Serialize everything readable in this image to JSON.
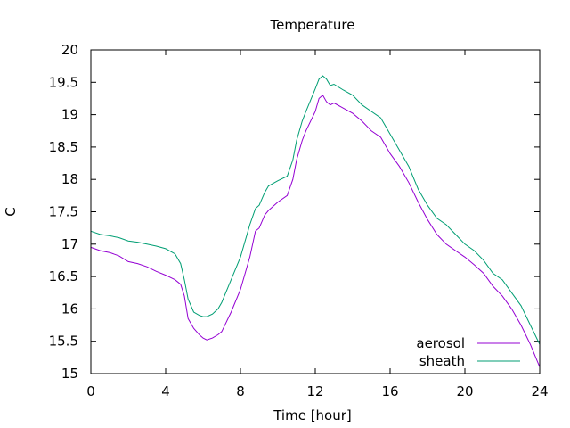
{
  "chart_data": {
    "type": "line",
    "title": "Temperature",
    "xlabel": "Time [hour]",
    "ylabel": "C",
    "xlim": [
      0,
      24
    ],
    "ylim": [
      15,
      20
    ],
    "xticks": [
      0,
      4,
      8,
      12,
      16,
      20,
      24
    ],
    "yticks": [
      15,
      15.5,
      16,
      16.5,
      17,
      17.5,
      18,
      18.5,
      19,
      19.5,
      20
    ],
    "grid": false,
    "legend_position": "bottom-right",
    "series": [
      {
        "name": "aerosol",
        "color": "#9400d3",
        "x": [
          0,
          0.5,
          1,
          1.5,
          2,
          2.5,
          3,
          3.5,
          4,
          4.5,
          4.8,
          5,
          5.2,
          5.5,
          5.8,
          6,
          6.2,
          6.5,
          6.8,
          7,
          7.5,
          8,
          8.5,
          8.8,
          9,
          9.3,
          9.5,
          10,
          10.5,
          10.8,
          11,
          11.3,
          11.5,
          12,
          12.2,
          12.4,
          12.6,
          12.8,
          13,
          13.5,
          14,
          14.5,
          15,
          15.5,
          16,
          16.5,
          17,
          17.5,
          18,
          18.5,
          19,
          19.5,
          20,
          20.5,
          21,
          21.5,
          22,
          22.5,
          23,
          23.5,
          24
        ],
        "y": [
          16.95,
          16.9,
          16.87,
          16.82,
          16.73,
          16.7,
          16.65,
          16.58,
          16.52,
          16.45,
          16.38,
          16.2,
          15.85,
          15.7,
          15.6,
          15.55,
          15.52,
          15.55,
          15.6,
          15.65,
          15.95,
          16.3,
          16.8,
          17.2,
          17.25,
          17.45,
          17.52,
          17.65,
          17.75,
          18.0,
          18.3,
          18.6,
          18.75,
          19.05,
          19.25,
          19.3,
          19.2,
          19.15,
          19.18,
          19.1,
          19.02,
          18.9,
          18.75,
          18.65,
          18.4,
          18.2,
          17.95,
          17.65,
          17.38,
          17.15,
          17.0,
          16.9,
          16.8,
          16.68,
          16.55,
          16.35,
          16.2,
          16.0,
          15.75,
          15.45,
          15.1
        ]
      },
      {
        "name": "sheath",
        "color": "#009e73",
        "x": [
          0,
          0.5,
          1,
          1.5,
          2,
          2.5,
          3,
          3.5,
          4,
          4.5,
          4.8,
          5,
          5.2,
          5.5,
          5.8,
          6,
          6.2,
          6.5,
          6.8,
          7,
          7.5,
          8,
          8.5,
          8.8,
          9,
          9.3,
          9.5,
          10,
          10.5,
          10.8,
          11,
          11.3,
          11.5,
          12,
          12.2,
          12.4,
          12.6,
          12.8,
          13,
          13.5,
          14,
          14.5,
          15,
          15.5,
          16,
          16.5,
          17,
          17.5,
          18,
          18.5,
          19,
          19.5,
          20,
          20.5,
          21,
          21.5,
          22,
          22.5,
          23,
          23.5,
          24
        ],
        "y": [
          17.2,
          17.15,
          17.13,
          17.1,
          17.05,
          17.03,
          17.0,
          16.97,
          16.93,
          16.85,
          16.7,
          16.45,
          16.15,
          15.95,
          15.9,
          15.88,
          15.88,
          15.92,
          16.0,
          16.1,
          16.45,
          16.8,
          17.3,
          17.55,
          17.6,
          17.8,
          17.9,
          17.98,
          18.05,
          18.3,
          18.6,
          18.9,
          19.05,
          19.4,
          19.55,
          19.6,
          19.55,
          19.45,
          19.47,
          19.38,
          19.3,
          19.15,
          19.05,
          18.95,
          18.7,
          18.45,
          18.2,
          17.85,
          17.6,
          17.4,
          17.3,
          17.15,
          17.0,
          16.9,
          16.75,
          16.55,
          16.45,
          16.25,
          16.05,
          15.75,
          15.45
        ]
      }
    ]
  }
}
